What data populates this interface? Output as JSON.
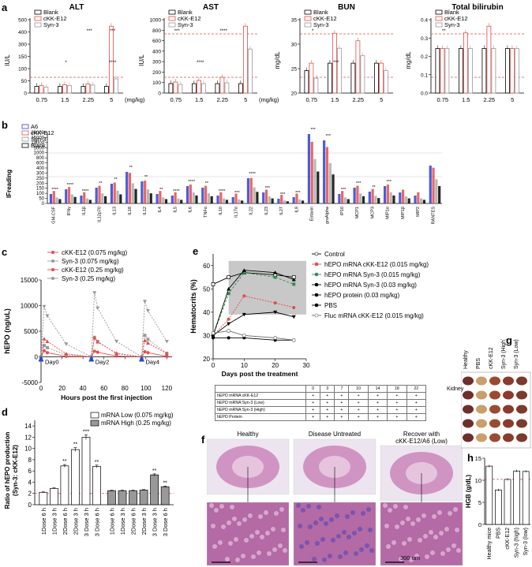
{
  "figure": {
    "panel_letters": {
      "a": "a",
      "b": "b",
      "c": "c",
      "d": "d",
      "e": "e",
      "f": "f",
      "g": "g",
      "h": "h"
    }
  },
  "legend_a": [
    "Blank",
    "cKK-E12",
    "Syn-3"
  ],
  "colors": {
    "blank": "#000000",
    "ckk": "#e64b4b",
    "syn3": "#999999",
    "a6": "#2e3ed6",
    "threshold": "#e64b4b",
    "green": "#2f8f4f",
    "gray_band": "#c8c8c8"
  },
  "chart_data": [
    {
      "id": "a-alt",
      "type": "bar",
      "title": "ALT",
      "ylabel": "IU/L",
      "xlabel": "(mg/kg)",
      "categories": [
        "0.75",
        "1.5",
        "2.25",
        "5"
      ],
      "yticks": [
        "0",
        "50",
        "100",
        "150",
        "300",
        "400",
        "500"
      ],
      "series": [
        {
          "name": "Blank",
          "values": [
            40,
            40,
            40,
            40
          ]
        },
        {
          "name": "cKK-E12",
          "values": [
            45,
            50,
            55,
            400
          ]
        },
        {
          "name": "Syn-3",
          "values": [
            35,
            45,
            48,
            85
          ]
        }
      ],
      "stars": [
        "",
        "*",
        "***",
        "****",
        "***"
      ]
    },
    {
      "id": "a-ast",
      "type": "bar",
      "title": "AST",
      "ylabel": "IU/L",
      "xlabel": "(mg/kg)",
      "categories": [
        "0.75",
        "1.5",
        "2.25",
        "5"
      ],
      "yticks": [
        "0",
        "100",
        "200",
        "300",
        "400",
        "600",
        "800",
        "1000"
      ],
      "series": [
        {
          "name": "Blank",
          "values": [
            120,
            120,
            120,
            120
          ]
        },
        {
          "name": "cKK-E12",
          "values": [
            140,
            160,
            200,
            850
          ]
        },
        {
          "name": "Syn-3",
          "values": [
            110,
            120,
            130,
            560
          ]
        }
      ],
      "stars": [
        "***",
        "****",
        "****"
      ]
    },
    {
      "id": "a-bun",
      "type": "bar",
      "title": "BUN",
      "ylabel": "mg/dL",
      "xlabel": "(mg/kg)",
      "categories": [
        "0.75",
        "1.5",
        "2.25",
        "5"
      ],
      "yticks": [
        "20",
        "25",
        "30",
        "35"
      ],
      "series": [
        {
          "name": "Blank",
          "values": [
            23,
            24,
            24,
            24
          ]
        },
        {
          "name": "cKK-E12",
          "values": [
            24,
            28,
            27,
            24
          ]
        },
        {
          "name": "Syn-3",
          "values": [
            22,
            26,
            25,
            23
          ]
        }
      ],
      "stars": [
        "*",
        "***"
      ]
    },
    {
      "id": "a-tbil",
      "type": "bar",
      "title": "Total bilirubin",
      "ylabel": "mg/dL",
      "xlabel": "(mg/kg)",
      "categories": [
        "0.75",
        "1.5",
        "2.25",
        "5"
      ],
      "yticks": [
        "0.0",
        "0.1",
        "0.2",
        "0.3",
        "0.4"
      ],
      "series": [
        {
          "name": "Blank",
          "values": [
            0.2,
            0.2,
            0.2,
            0.2
          ]
        },
        {
          "name": "cKK-E12",
          "values": [
            0.2,
            0.27,
            0.3,
            0.2
          ]
        },
        {
          "name": "Syn-3",
          "values": [
            0.2,
            0.2,
            0.2,
            0.2
          ]
        }
      ],
      "stars": [
        "**"
      ]
    },
    {
      "id": "b",
      "type": "bar",
      "ylabel": "IFreading",
      "legend": [
        "A6",
        "cKK-E12",
        "Syn-3",
        "Blank"
      ],
      "categories": [
        "GM-CSF",
        "IFNγ",
        "IL1β",
        "IL12p70",
        "IL13",
        "IL18",
        "IL12",
        "IL4",
        "IL5",
        "IL6",
        "TNFα",
        "IL10",
        "IL17α",
        "IL22",
        "IL23",
        "IL27",
        "IL9",
        "Eotaxin",
        "groAlpha",
        "IP10",
        "MCP1",
        "MCP3",
        "MIP1α",
        "MIP1β",
        "MIP2",
        "RANTES"
      ],
      "yticks": [
        "0",
        "50",
        "100",
        "150",
        "200",
        "250",
        "300",
        "400",
        "600",
        "800",
        "1000",
        "5000",
        "10000",
        "15000",
        "20000"
      ],
      "stars": [
        "****",
        "****",
        "****",
        "**",
        "**",
        "**",
        "**",
        "**",
        "****",
        "****",
        "**",
        "****",
        "***",
        "****",
        "***",
        "***",
        "***",
        "***",
        "***",
        "***",
        "***",
        "**",
        "***"
      ]
    },
    {
      "id": "c",
      "type": "line",
      "ylabel": "hEPO (ng/uL)",
      "xlabel": "Hours post the first injection",
      "yticks": [
        "-5000",
        "0",
        "5000",
        "10000",
        "15000"
      ],
      "xticks": [
        "0",
        "20",
        "40",
        "60",
        "80",
        "100",
        "120"
      ],
      "ylim": [
        -5000,
        15000
      ],
      "xlim": [
        0,
        125
      ],
      "day_labels": [
        "Day0",
        "Day2",
        "Day4"
      ],
      "series": [
        {
          "name": "cKK-E12 (0.075 mg/kg)",
          "x": [
            0,
            3,
            6,
            24,
            48,
            51,
            54,
            72,
            96,
            99,
            102,
            120
          ],
          "y": [
            0,
            1200,
            800,
            100,
            0,
            1100,
            900,
            150,
            0,
            1000,
            800,
            100
          ]
        },
        {
          "name": "Syn-3 (0.075 mg/kg)",
          "x": [
            0,
            3,
            6,
            24,
            48,
            51,
            54,
            72,
            96,
            99,
            102,
            120
          ],
          "y": [
            0,
            2200,
            1800,
            400,
            0,
            3800,
            3000,
            600,
            0,
            4200,
            3400,
            700
          ]
        },
        {
          "name": "cKK-E12 (0.25 mg/kg)",
          "x": [
            0,
            3,
            6,
            24,
            48,
            51,
            54,
            72,
            96,
            99,
            102,
            120
          ],
          "y": [
            0,
            3500,
            3000,
            600,
            0,
            3700,
            2900,
            700,
            0,
            3200,
            2700,
            600
          ]
        },
        {
          "name": "Syn-3 (0.25 mg/kg)",
          "x": [
            0,
            3,
            6,
            24,
            48,
            51,
            54,
            72,
            96,
            99,
            102,
            120
          ],
          "y": [
            0,
            9800,
            8000,
            2500,
            0,
            12500,
            9500,
            3000,
            0,
            10800,
            9000,
            3000
          ]
        }
      ]
    },
    {
      "id": "d",
      "type": "bar",
      "ylabel": "Ratio of hEPO production\n(Syn-3: cKK-E12)",
      "yticks": [
        "0",
        "2",
        "4",
        "6",
        "8",
        "10",
        "12",
        "14"
      ],
      "ylim": [
        0,
        15
      ],
      "legend": [
        "mRNA Low (0.075 mg/kg)",
        "mRNA High (0.25 mg/kg)"
      ],
      "categories": [
        "1Dose 6 h",
        "1Dose 3 h",
        "2Dose 6 h",
        "2Dose 3 h",
        "3 Dose 3 h",
        "3 Dose 6 h"
      ],
      "series": [
        {
          "name": "mRNA Low (0.075 mg/kg)",
          "values": [
            2.2,
            2.9,
            6.9,
            9.8,
            12.0,
            6.8
          ]
        },
        {
          "name": "mRNA High (0.25 mg/kg)",
          "values": [
            2.5,
            2.5,
            2.5,
            2.6,
            5.3,
            3.2
          ]
        }
      ],
      "stars_low": [
        "",
        "",
        "**",
        "**",
        "***",
        "**"
      ],
      "stars_high": [
        "",
        "",
        "",
        "",
        "**",
        "**"
      ]
    },
    {
      "id": "e",
      "type": "line",
      "ylabel": "Hematocrits (%)",
      "xlabel": "Days post the treatment",
      "yticks": [
        "20",
        "30",
        "40",
        "50",
        "60"
      ],
      "xticks": [
        "0",
        "10",
        "20",
        "30"
      ],
      "ylim": [
        20,
        65
      ],
      "xlim": [
        0,
        30
      ],
      "series": [
        {
          "name": "Control",
          "x": [
            0,
            5,
            10,
            20,
            26
          ],
          "y": [
            52,
            55,
            57,
            56,
            55
          ]
        },
        {
          "name": "hEPO mRNA cKK-E12  (0.015 mg/kg)",
          "x": [
            0,
            5,
            10,
            20,
            26
          ],
          "y": [
            30,
            37,
            47,
            44,
            42
          ]
        },
        {
          "name": "hEPO mRNA Syn-3  (0.015 mg/kg)",
          "x": [
            0,
            5,
            10,
            20,
            26
          ],
          "y": [
            30,
            48,
            57,
            55,
            52
          ]
        },
        {
          "name": "hEPO mRNA Syn-3  (0.03 mg/kg)",
          "x": [
            0,
            5,
            10,
            20,
            26
          ],
          "y": [
            30,
            50,
            58,
            57,
            54
          ]
        },
        {
          "name": "hEPO protein  (0.03 mg/kg)",
          "x": [
            0,
            5,
            10,
            20,
            26
          ],
          "y": [
            30,
            35,
            39,
            40,
            38
          ]
        },
        {
          "name": "PBS",
          "x": [
            0,
            5,
            10,
            20,
            26
          ],
          "y": [
            29,
            29,
            29,
            28,
            28
          ]
        },
        {
          "name": "Fluc mRNA cKK-E12 (0.015 mg/kg)",
          "x": [
            0,
            5,
            10,
            20,
            26
          ],
          "y": [
            31,
            32,
            30,
            29,
            28
          ]
        }
      ]
    },
    {
      "id": "h",
      "type": "bar",
      "ylabel": "HGB (g/dL)",
      "yticks": [
        "0",
        "5",
        "10",
        "15"
      ],
      "ylim": [
        0,
        15
      ],
      "categories": [
        "Healthy mice",
        "PBS",
        "cKK-E12",
        "Syn-3 (high)",
        "Syn-3 (low)"
      ],
      "values": [
        13.2,
        7.8,
        10.2,
        12.1,
        12.0
      ],
      "threshold": 10.2
    }
  ],
  "table_e": {
    "days": [
      "0",
      "3",
      "7",
      "10",
      "14",
      "18",
      "22"
    ],
    "rows": [
      {
        "label": "hEPO mRNA cKK-E12",
        "marks": [
          "+",
          "+",
          "+",
          "+",
          "+",
          "+",
          "+"
        ]
      },
      {
        "label": "hEPO mRNA Syn-3 (Low)",
        "marks": [
          "+",
          "+",
          "+",
          "+",
          "+",
          "+",
          "+"
        ]
      },
      {
        "label": "hEPO mRNA Syn-3 (High)",
        "marks": [
          "+",
          "+",
          "+",
          "+",
          "+",
          "+",
          "+"
        ]
      },
      {
        "label": "hEPO Protein",
        "marks": [
          "+",
          "+",
          "+",
          "+",
          "+",
          "+",
          "+"
        ]
      }
    ]
  },
  "panel_f": {
    "titles": [
      "Healthy",
      "Disease Untreated",
      "Recover with\ncKK-E12/A6 (Low)"
    ],
    "scale_label": "300 um"
  },
  "panel_g": {
    "columns": [
      "Healthy",
      "PBS",
      "cKK-E12",
      "Syn-3 (High)",
      "Syn-3 (Low)"
    ],
    "row_label": "Kidney"
  }
}
